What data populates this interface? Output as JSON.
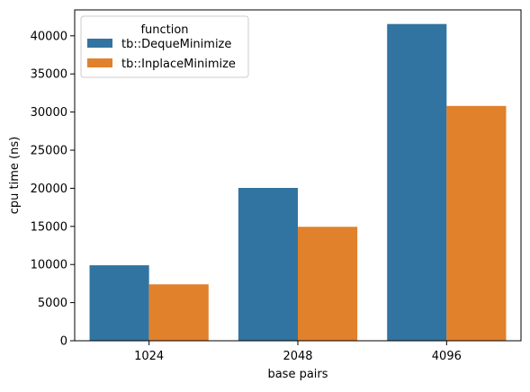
{
  "chart_data": {
    "type": "bar",
    "xlabel": "base pairs",
    "ylabel": "cpu time (ns)",
    "categories": [
      "1024",
      "2048",
      "4096"
    ],
    "ylim": [
      0,
      43400
    ],
    "yticks": [
      0,
      5000,
      10000,
      15000,
      20000,
      25000,
      30000,
      35000,
      40000
    ],
    "grid": false,
    "legend": {
      "title": "function",
      "placement": "top-left"
    },
    "series": [
      {
        "name": "tb::DequeMinimize",
        "color": "#3274a1",
        "values": [
          9900,
          20050,
          41550
        ]
      },
      {
        "name": "tb::InplaceMinimize",
        "color": "#e1812c",
        "values": [
          7400,
          14950,
          30800
        ]
      }
    ]
  }
}
